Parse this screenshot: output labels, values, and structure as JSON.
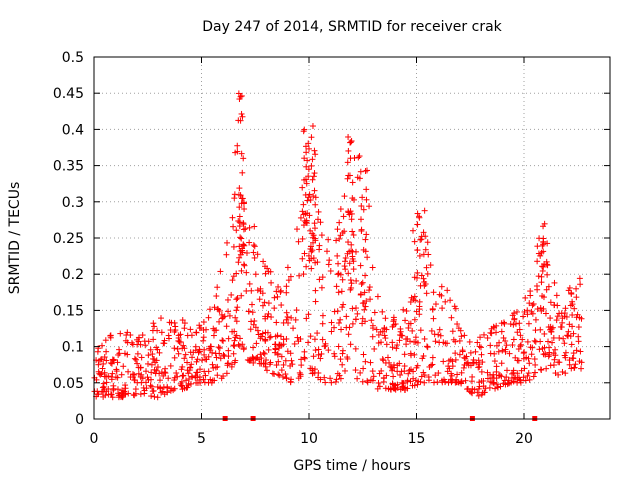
{
  "chart_data": {
    "type": "scatter",
    "title": "Day 247 of 2014, SRMTID for receiver crak",
    "xlabel": "GPS time / hours",
    "ylabel": "SRMTID / TECUs",
    "xlim": [
      0,
      24
    ],
    "ylim": [
      0,
      0.5
    ],
    "xticks": [
      0,
      5,
      10,
      15,
      20
    ],
    "yticks": [
      0,
      0.05,
      0.1,
      0.15,
      0.2,
      0.25,
      0.3,
      0.35,
      0.4,
      0.45,
      0.5
    ],
    "grid": true,
    "legend": "none",
    "marker": "plus",
    "color": "#ff0000",
    "zero_markers_x": [
      6.1,
      7.4,
      17.6,
      20.5
    ],
    "envelope": [
      {
        "t": 0.0,
        "lo": 0.03,
        "hi": 0.1
      },
      {
        "t": 1.0,
        "lo": 0.03,
        "hi": 0.12
      },
      {
        "t": 2.0,
        "lo": 0.03,
        "hi": 0.12
      },
      {
        "t": 3.0,
        "lo": 0.03,
        "hi": 0.14
      },
      {
        "t": 4.0,
        "lo": 0.04,
        "hi": 0.14
      },
      {
        "t": 5.0,
        "lo": 0.05,
        "hi": 0.13
      },
      {
        "t": 5.5,
        "lo": 0.05,
        "hi": 0.16
      },
      {
        "t": 6.2,
        "lo": 0.06,
        "hi": 0.26
      },
      {
        "t": 6.8,
        "lo": 0.09,
        "hi": 0.45
      },
      {
        "t": 7.2,
        "lo": 0.08,
        "hi": 0.3
      },
      {
        "t": 7.8,
        "lo": 0.07,
        "hi": 0.24
      },
      {
        "t": 8.5,
        "lo": 0.06,
        "hi": 0.18
      },
      {
        "t": 9.2,
        "lo": 0.05,
        "hi": 0.22
      },
      {
        "t": 10.0,
        "lo": 0.06,
        "hi": 0.4
      },
      {
        "t": 10.6,
        "lo": 0.05,
        "hi": 0.28
      },
      {
        "t": 11.2,
        "lo": 0.05,
        "hi": 0.24
      },
      {
        "t": 11.9,
        "lo": 0.06,
        "hi": 0.39
      },
      {
        "t": 12.6,
        "lo": 0.05,
        "hi": 0.35
      },
      {
        "t": 13.3,
        "lo": 0.04,
        "hi": 0.16
      },
      {
        "t": 14.0,
        "lo": 0.04,
        "hi": 0.14
      },
      {
        "t": 14.6,
        "lo": 0.04,
        "hi": 0.16
      },
      {
        "t": 15.2,
        "lo": 0.05,
        "hi": 0.29
      },
      {
        "t": 16.0,
        "lo": 0.05,
        "hi": 0.2
      },
      {
        "t": 17.0,
        "lo": 0.05,
        "hi": 0.15
      },
      {
        "t": 17.8,
        "lo": 0.03,
        "hi": 0.12
      },
      {
        "t": 18.5,
        "lo": 0.04,
        "hi": 0.13
      },
      {
        "t": 19.4,
        "lo": 0.05,
        "hi": 0.15
      },
      {
        "t": 20.2,
        "lo": 0.05,
        "hi": 0.18
      },
      {
        "t": 20.9,
        "lo": 0.07,
        "hi": 0.28
      },
      {
        "t": 21.6,
        "lo": 0.06,
        "hi": 0.16
      },
      {
        "t": 22.7,
        "lo": 0.07,
        "hi": 0.22
      }
    ],
    "bursts": [
      {
        "t0": 6.6,
        "t1": 7.0,
        "lo": 0.2,
        "hi": 0.45,
        "n": 35
      },
      {
        "t0": 9.7,
        "t1": 10.3,
        "lo": 0.2,
        "hi": 0.41,
        "n": 45
      },
      {
        "t0": 11.8,
        "t1": 12.2,
        "lo": 0.18,
        "hi": 0.39,
        "n": 25
      },
      {
        "t0": 12.4,
        "t1": 12.8,
        "lo": 0.15,
        "hi": 0.35,
        "n": 20
      },
      {
        "t0": 14.8,
        "t1": 15.5,
        "lo": 0.15,
        "hi": 0.29,
        "n": 22
      },
      {
        "t0": 20.6,
        "t1": 21.1,
        "lo": 0.15,
        "hi": 0.28,
        "n": 15
      }
    ]
  }
}
